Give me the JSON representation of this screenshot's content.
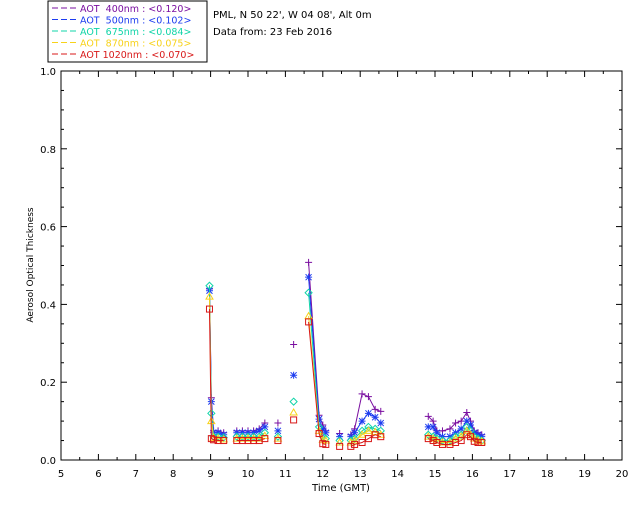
{
  "header": {
    "site": "PML, N 50 22', W 04 08', Alt 0m",
    "date_line": "Data from: 23 Feb 2016"
  },
  "chart_data": {
    "type": "scatter",
    "xlabel": "Time (GMT)",
    "ylabel": "Aerosol Optical Thickness",
    "xlim": [
      5,
      20
    ],
    "ylim": [
      0,
      1
    ],
    "x_ticks": [
      5,
      6,
      7,
      8,
      9,
      10,
      11,
      12,
      13,
      14,
      15,
      16,
      17,
      18,
      19,
      20
    ],
    "y_ticks": [
      0.0,
      0.2,
      0.4,
      0.6,
      0.8,
      1.0
    ],
    "y_tick_labels": [
      "0.0",
      "0.2",
      "0.4",
      "0.6",
      "0.8",
      "1.0"
    ],
    "grid": false,
    "legend_position": "top-left",
    "series": [
      {
        "name": "AOT  400nm : <0.120>",
        "color": "#7a0fa0",
        "marker": "plus",
        "x": [
          8.97,
          9.02,
          9.08,
          9.2,
          9.35,
          9.7,
          9.85,
          10.0,
          10.15,
          10.3,
          10.45,
          10.8,
          11.22,
          11.62,
          11.9,
          12.0,
          12.08,
          12.45,
          12.75,
          12.85,
          13.05,
          13.22,
          13.4,
          13.55,
          14.82,
          14.95,
          15.05,
          15.2,
          15.4,
          15.55,
          15.7,
          15.85,
          15.95,
          16.05,
          16.15,
          16.25
        ],
        "y": [
          0.44,
          0.16,
          0.075,
          0.075,
          0.07,
          0.075,
          0.075,
          0.075,
          0.075,
          0.08,
          0.095,
          0.095,
          0.297,
          0.508,
          0.115,
          0.09,
          0.075,
          0.068,
          0.065,
          0.08,
          0.17,
          0.163,
          0.13,
          0.125,
          0.112,
          0.1,
          0.075,
          0.075,
          0.08,
          0.095,
          0.1,
          0.122,
          0.1,
          0.075,
          0.07,
          0.065
        ]
      },
      {
        "name": "AOT  500nm : <0.102>",
        "color": "#1c3cf0",
        "marker": "star",
        "x": [
          8.97,
          9.02,
          9.08,
          9.2,
          9.35,
          9.7,
          9.85,
          10.0,
          10.15,
          10.3,
          10.45,
          10.8,
          11.22,
          11.62,
          11.9,
          12.0,
          12.08,
          12.45,
          12.75,
          12.85,
          13.05,
          13.22,
          13.4,
          13.55,
          14.82,
          14.95,
          15.05,
          15.2,
          15.4,
          15.55,
          15.7,
          15.85,
          15.95,
          16.05,
          16.15,
          16.25
        ],
        "y": [
          0.435,
          0.15,
          0.07,
          0.07,
          0.065,
          0.07,
          0.07,
          0.07,
          0.07,
          0.075,
          0.085,
          0.075,
          0.218,
          0.47,
          0.105,
          0.08,
          0.07,
          0.06,
          0.06,
          0.07,
          0.1,
          0.12,
          0.11,
          0.095,
          0.085,
          0.085,
          0.07,
          0.06,
          0.06,
          0.07,
          0.08,
          0.1,
          0.09,
          0.07,
          0.065,
          0.06
        ]
      },
      {
        "name": "AOT  675nm : <0.084>",
        "color": "#10d4a8",
        "marker": "diamond",
        "x": [
          8.97,
          9.02,
          9.08,
          9.2,
          9.35,
          9.7,
          9.85,
          10.0,
          10.15,
          10.3,
          10.45,
          10.8,
          11.22,
          11.62,
          11.9,
          12.0,
          12.08,
          12.45,
          12.75,
          12.85,
          13.05,
          13.22,
          13.4,
          13.55,
          14.82,
          14.95,
          15.05,
          15.2,
          15.4,
          15.55,
          15.7,
          15.85,
          15.95,
          16.05,
          16.15,
          16.25
        ],
        "y": [
          0.448,
          0.12,
          0.06,
          0.06,
          0.058,
          0.06,
          0.06,
          0.06,
          0.06,
          0.06,
          0.07,
          0.06,
          0.15,
          0.43,
          0.085,
          0.06,
          0.055,
          0.05,
          0.05,
          0.055,
          0.075,
          0.085,
          0.08,
          0.075,
          0.065,
          0.06,
          0.055,
          0.05,
          0.05,
          0.06,
          0.065,
          0.085,
          0.075,
          0.06,
          0.055,
          0.05
        ]
      },
      {
        "name": "AOT  870nm : <0.075>",
        "color": "#f7d21a",
        "marker": "triangle",
        "x": [
          8.97,
          9.02,
          9.08,
          9.2,
          9.35,
          9.7,
          9.85,
          10.0,
          10.15,
          10.3,
          10.45,
          10.8,
          11.22,
          11.62,
          11.9,
          12.0,
          12.08,
          12.45,
          12.75,
          12.85,
          13.05,
          13.22,
          13.4,
          13.55,
          14.82,
          14.95,
          15.05,
          15.2,
          15.4,
          15.55,
          15.7,
          15.85,
          15.95,
          16.05,
          16.15,
          16.25
        ],
        "y": [
          0.42,
          0.1,
          0.057,
          0.055,
          0.053,
          0.055,
          0.055,
          0.055,
          0.055,
          0.055,
          0.062,
          0.055,
          0.122,
          0.37,
          0.075,
          0.052,
          0.05,
          0.045,
          0.045,
          0.05,
          0.065,
          0.075,
          0.072,
          0.065,
          0.06,
          0.055,
          0.05,
          0.045,
          0.045,
          0.055,
          0.06,
          0.075,
          0.065,
          0.055,
          0.05,
          0.048
        ]
      },
      {
        "name": "AOT 1020nm : <0.070>",
        "color": "#d81818",
        "marker": "square",
        "x": [
          8.97,
          9.02,
          9.08,
          9.2,
          9.35,
          9.7,
          9.85,
          10.0,
          10.15,
          10.3,
          10.45,
          10.8,
          11.22,
          11.62,
          11.9,
          12.0,
          12.08,
          12.45,
          12.75,
          12.85,
          13.05,
          13.22,
          13.4,
          13.55,
          14.82,
          14.95,
          15.05,
          15.2,
          15.4,
          15.55,
          15.7,
          15.85,
          15.95,
          16.05,
          16.15,
          16.25
        ],
        "y": [
          0.388,
          0.055,
          0.052,
          0.05,
          0.05,
          0.05,
          0.05,
          0.05,
          0.05,
          0.05,
          0.055,
          0.05,
          0.103,
          0.355,
          0.068,
          0.042,
          0.04,
          0.035,
          0.035,
          0.04,
          0.045,
          0.055,
          0.065,
          0.06,
          0.055,
          0.05,
          0.045,
          0.04,
          0.04,
          0.045,
          0.05,
          0.065,
          0.06,
          0.048,
          0.045,
          0.045
        ]
      }
    ]
  }
}
